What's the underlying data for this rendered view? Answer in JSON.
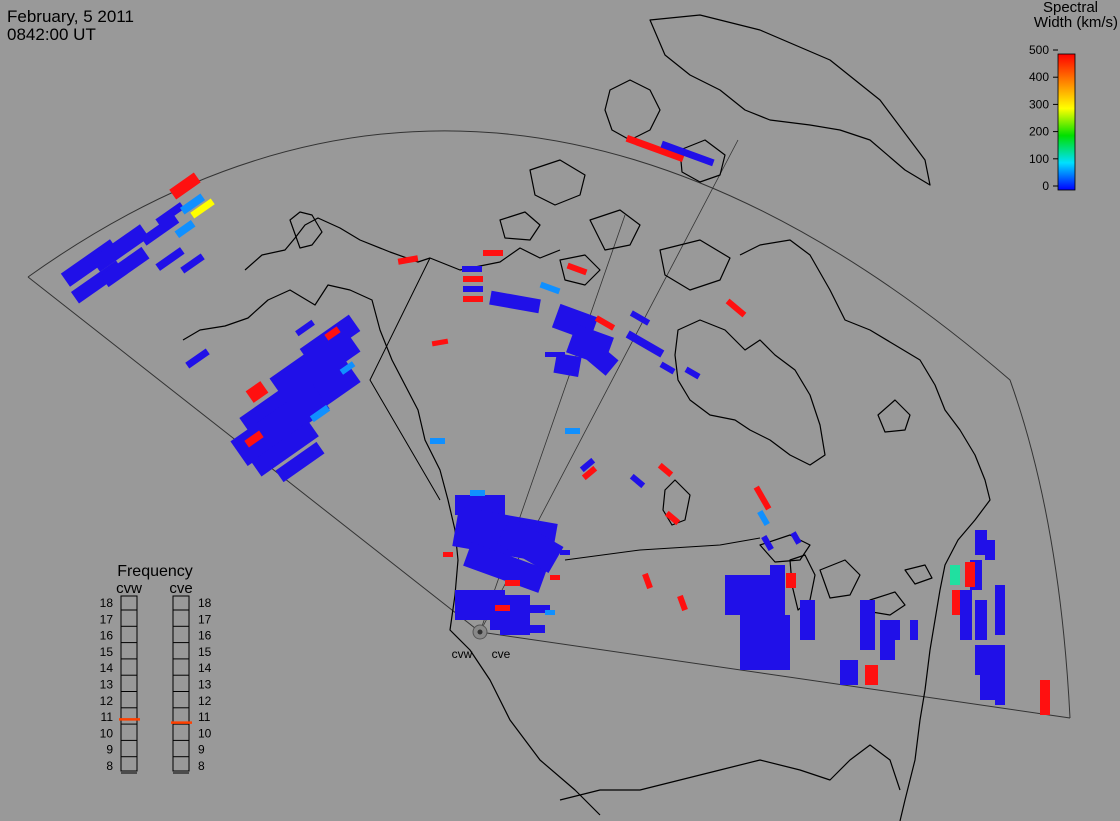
{
  "header": {
    "date": "February, 5 2011",
    "time": "0842:00 UT"
  },
  "colorbar": {
    "title_line1": "Spectral",
    "title_line2": "Width (km/s)",
    "ticks": [
      "500",
      "400",
      "300",
      "200",
      "100",
      "0"
    ],
    "stops": [
      "#ff0000",
      "#ffa500",
      "#ffff00",
      "#00ff00",
      "#00ffff",
      "#0000ff"
    ]
  },
  "frequency_panel": {
    "title": "Frequency",
    "radars": [
      "cvw",
      "cve"
    ],
    "scale": [
      "18",
      "17",
      "16",
      "15",
      "14",
      "13",
      "12",
      "11",
      "10",
      "9",
      "8"
    ],
    "cvw_marker_mhz": 10.8,
    "cve_marker_mhz": 10.6,
    "marker_color": "#ff4000"
  },
  "radar_sites": {
    "labels": [
      "cvw",
      "cve"
    ]
  },
  "colors": {
    "background": "#999999",
    "scatter_low": "#2010e8",
    "scatter_mid": "#1090ff",
    "scatter_high": "#ff1010",
    "scatter_yellow": "#ffff00",
    "scatter_cyan": "#20e0a0"
  }
}
